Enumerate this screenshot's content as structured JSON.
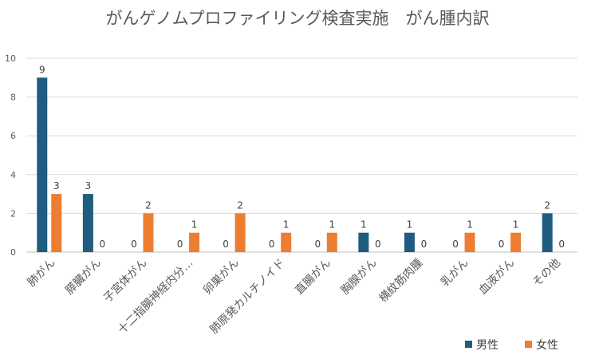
{
  "chart_data": {
    "type": "bar",
    "title": "がんゲノムプロファイリング検査実施　がん腫内訳",
    "xlabel": "",
    "ylabel": "",
    "ylim": [
      0,
      10
    ],
    "yticks": [
      0,
      2,
      4,
      6,
      8,
      10
    ],
    "grid": true,
    "legend_position": "bottom-right",
    "categories": [
      "肺がん",
      "膵臓がん",
      "子宮体がん",
      "十二指腸神経内分…",
      "卵巣がん",
      "肺原発カルチノイド",
      "直腸がん",
      "胸腺がん",
      "横紋筋肉腫",
      "乳がん",
      "血液がん",
      "その他"
    ],
    "series": [
      {
        "name": "男性",
        "color": "#1F5C7F",
        "values": [
          9,
          3,
          0,
          0,
          0,
          0,
          0,
          1,
          1,
          0,
          0,
          2
        ]
      },
      {
        "name": "女性",
        "color": "#ED7D31",
        "values": [
          3,
          0,
          2,
          1,
          2,
          1,
          1,
          0,
          0,
          1,
          1,
          0
        ]
      }
    ]
  }
}
